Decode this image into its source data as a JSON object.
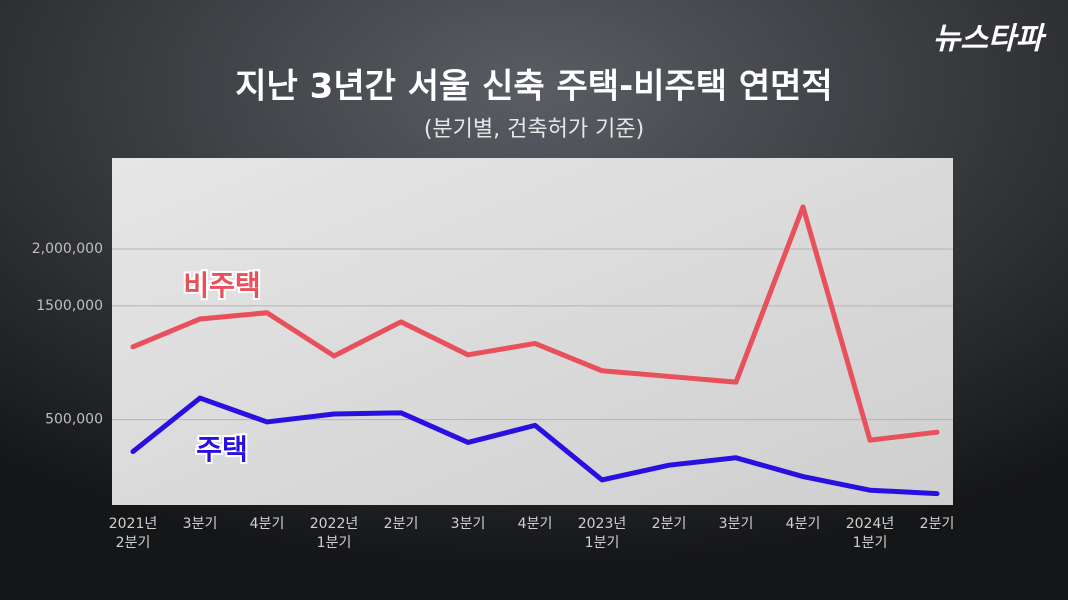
{
  "brand": "뉴스타파",
  "chart_data": {
    "type": "line",
    "title": "지난 3년간 서울 신축 주택-비주택 연면적",
    "subtitle": "(분기별, 건축허가 기준)",
    "categories": [
      [
        "2021년",
        "2분기"
      ],
      [
        "3분기"
      ],
      [
        "4분기"
      ],
      [
        "2022년",
        "1분기"
      ],
      [
        "2분기"
      ],
      [
        "3분기"
      ],
      [
        "4분기"
      ],
      [
        "2023년",
        "1분기"
      ],
      [
        "2분기"
      ],
      [
        "3분기"
      ],
      [
        "4분기"
      ],
      [
        "2024년",
        "1분기"
      ],
      [
        "2분기"
      ]
    ],
    "series": [
      {
        "name": "비주택",
        "color": "#e8505b",
        "values": [
          1140000,
          1385000,
          1440000,
          1060000,
          1360000,
          1070000,
          1170000,
          930000,
          880000,
          830000,
          2370000,
          320000,
          390000
        ]
      },
      {
        "name": "주택",
        "color": "#2a10e0",
        "values": [
          220000,
          690000,
          480000,
          550000,
          560000,
          300000,
          450000,
          -30000,
          100000,
          165000,
          0,
          -120000,
          -150000
        ]
      }
    ],
    "ylim": [
      -250000,
      2800000
    ],
    "yticks": [
      {
        "value": 2000000,
        "label": "2,000,000"
      },
      {
        "value": 1500000,
        "label": "1500,000"
      },
      {
        "value": 500000,
        "label": "500,000"
      }
    ],
    "grid": true
  }
}
